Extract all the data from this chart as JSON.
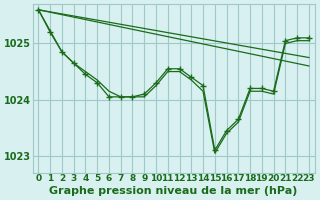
{
  "background_color": "#d8f0f0",
  "plot_bg_color": "#d8f0f0",
  "grid_color": "#a0c8c8",
  "line_color": "#1a6b1a",
  "title": "Graphe pression niveau de la mer (hPa)",
  "xlabel_fontsize": 7.5,
  "ylabel_fontsize": 7,
  "title_fontsize": 8,
  "ylim": [
    1022.7,
    1025.7
  ],
  "xlim": [
    -0.5,
    23.5
  ],
  "yticks": [
    1023,
    1024,
    1025
  ],
  "xtick_labels": [
    "0",
    "1",
    "2",
    "3",
    "4",
    "5",
    "6",
    "7",
    "8",
    "9",
    "10",
    "11",
    "12",
    "13",
    "14",
    "15",
    "16",
    "17",
    "18",
    "19",
    "20",
    "21",
    "22",
    "23"
  ],
  "series": [
    {
      "x": [
        0,
        1,
        2,
        3,
        4,
        5,
        6,
        7,
        8,
        9,
        10,
        11,
        12,
        13,
        14,
        15,
        16,
        17,
        18,
        19,
        20,
        21,
        22,
        23
      ],
      "y": [
        1025.6,
        1025.2,
        1024.85,
        1024.65,
        1024.45,
        1024.3,
        1024.05,
        1024.05,
        1024.05,
        1024.1,
        1024.3,
        1024.55,
        1024.55,
        1024.4,
        1024.25,
        1023.1,
        1023.45,
        1023.65,
        1024.2,
        1024.2,
        1024.15,
        1025.05,
        1025.1,
        1025.1
      ],
      "has_markers": true
    },
    {
      "x": [
        0,
        2,
        3,
        4,
        5,
        6,
        7,
        8,
        9,
        10,
        11,
        12,
        13,
        14,
        15,
        16,
        17,
        18,
        19,
        20,
        21,
        22,
        23
      ],
      "y": [
        1025.6,
        1024.85,
        1024.65,
        1024.5,
        1024.35,
        1024.15,
        1024.05,
        1024.05,
        1024.05,
        1024.25,
        1024.5,
        1024.5,
        1024.35,
        1024.15,
        1023.05,
        1023.4,
        1023.6,
        1024.15,
        1024.15,
        1024.1,
        1025.0,
        1025.05,
        1025.05
      ],
      "has_markers": false
    },
    {
      "x": [
        0,
        23
      ],
      "y": [
        1025.6,
        1024.6
      ],
      "has_markers": false
    },
    {
      "x": [
        0,
        23
      ],
      "y": [
        1025.6,
        1024.75
      ],
      "has_markers": false
    }
  ]
}
